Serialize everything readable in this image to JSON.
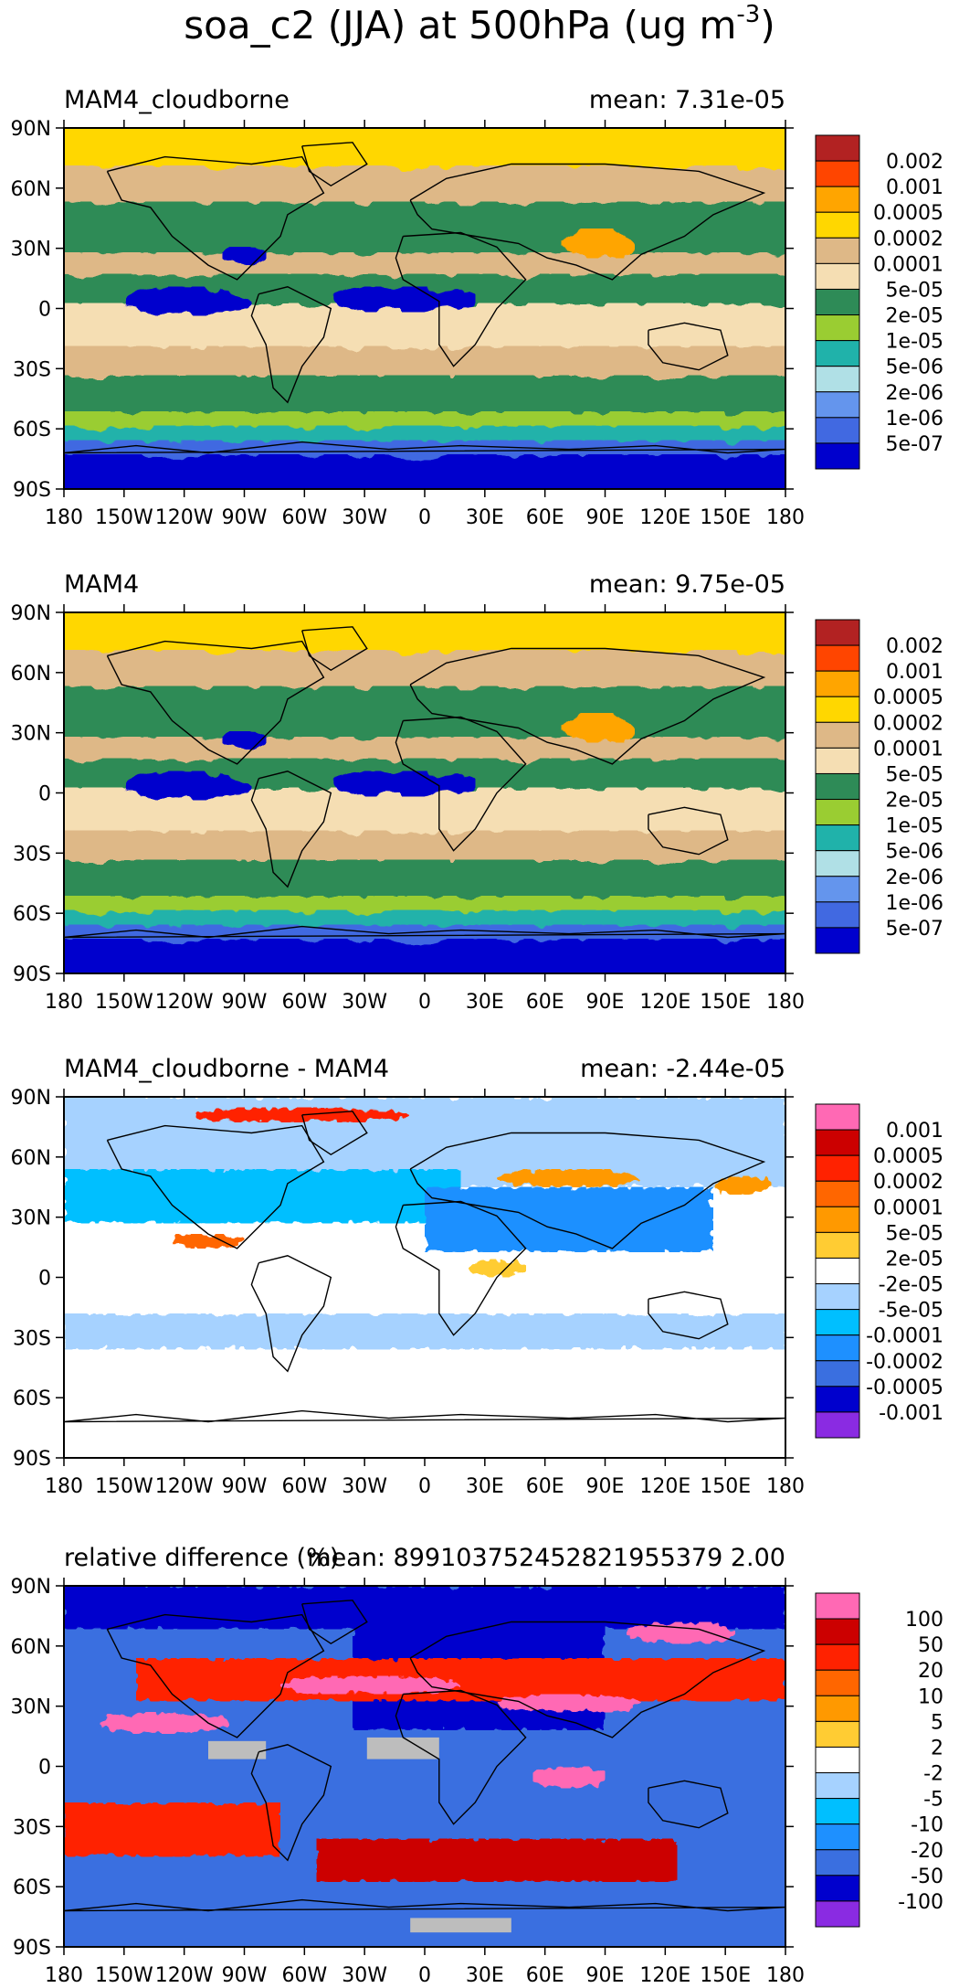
{
  "figure": {
    "title": "soa_c2 (JJA) at 500hPa (ug m",
    "title_exponent": "-3",
    "title_close": ")"
  },
  "axes": {
    "lon_ticks": [
      "180",
      "150W",
      "120W",
      "90W",
      "60W",
      "30W",
      "0",
      "30E",
      "60E",
      "90E",
      "120E",
      "150E",
      "180"
    ],
    "lat_ticks": [
      "90N",
      "60N",
      "30N",
      "0",
      "30S",
      "60S",
      "90S"
    ]
  },
  "panels": [
    {
      "label": "MAM4_cloudborne",
      "mean_text": "mean: 7.31e-05",
      "kind": "conc",
      "colorbar": {
        "labels": [
          "0.002",
          "0.001",
          "0.0005",
          "0.0002",
          "0.0001",
          "5e-05",
          "2e-05",
          "1e-05",
          "5e-06",
          "2e-06",
          "1e-06",
          "5e-07"
        ],
        "colors": [
          "#b22222",
          "#ff4500",
          "#ffa500",
          "#ffd700",
          "#deb887",
          "#f5deb3",
          "#2e8b57",
          "#9acd32",
          "#20b2aa",
          "#b0e0e6",
          "#6495ed",
          "#4169e1",
          "#0000cd"
        ]
      }
    },
    {
      "label": "MAM4",
      "mean_text": "mean: 9.75e-05",
      "kind": "conc",
      "colorbar": {
        "labels": [
          "0.002",
          "0.001",
          "0.0005",
          "0.0002",
          "0.0001",
          "5e-05",
          "2e-05",
          "1e-05",
          "5e-06",
          "2e-06",
          "1e-06",
          "5e-07"
        ],
        "colors": [
          "#b22222",
          "#ff4500",
          "#ffa500",
          "#ffd700",
          "#deb887",
          "#f5deb3",
          "#2e8b57",
          "#9acd32",
          "#20b2aa",
          "#b0e0e6",
          "#6495ed",
          "#4169e1",
          "#0000cd"
        ]
      }
    },
    {
      "label": "MAM4_cloudborne - MAM4",
      "mean_text": "mean: -2.44e-05",
      "kind": "diff",
      "colorbar": {
        "labels": [
          "0.001",
          "0.0005",
          "0.0002",
          "0.0001",
          "5e-05",
          "2e-05",
          "-2e-05",
          "-5e-05",
          "-0.0001",
          "-0.0002",
          "-0.0005",
          "-0.001"
        ],
        "colors": [
          "#ff69b4",
          "#cc0000",
          "#ff2200",
          "#ff6600",
          "#ff9900",
          "#ffcc33",
          "#ffffff",
          "#a6d2ff",
          "#00bfff",
          "#1e90ff",
          "#3a6fe0",
          "#0000cd",
          "#8a2be2"
        ]
      }
    },
    {
      "label": "relative difference (%)",
      "mean_text": "mean: 899103752452821955379 2.00",
      "kind": "rel",
      "colorbar": {
        "labels": [
          "100",
          "50",
          "20",
          "10",
          "5",
          "2",
          "-2",
          "-5",
          "-10",
          "-20",
          "-50",
          "-100"
        ],
        "colors": [
          "#ff69b4",
          "#cc0000",
          "#ff2200",
          "#ff6600",
          "#ff9900",
          "#ffcc33",
          "#ffffff",
          "#a6d2ff",
          "#00bfff",
          "#1e90ff",
          "#3a6fe0",
          "#0000cd",
          "#8a2be2"
        ]
      }
    }
  ]
}
